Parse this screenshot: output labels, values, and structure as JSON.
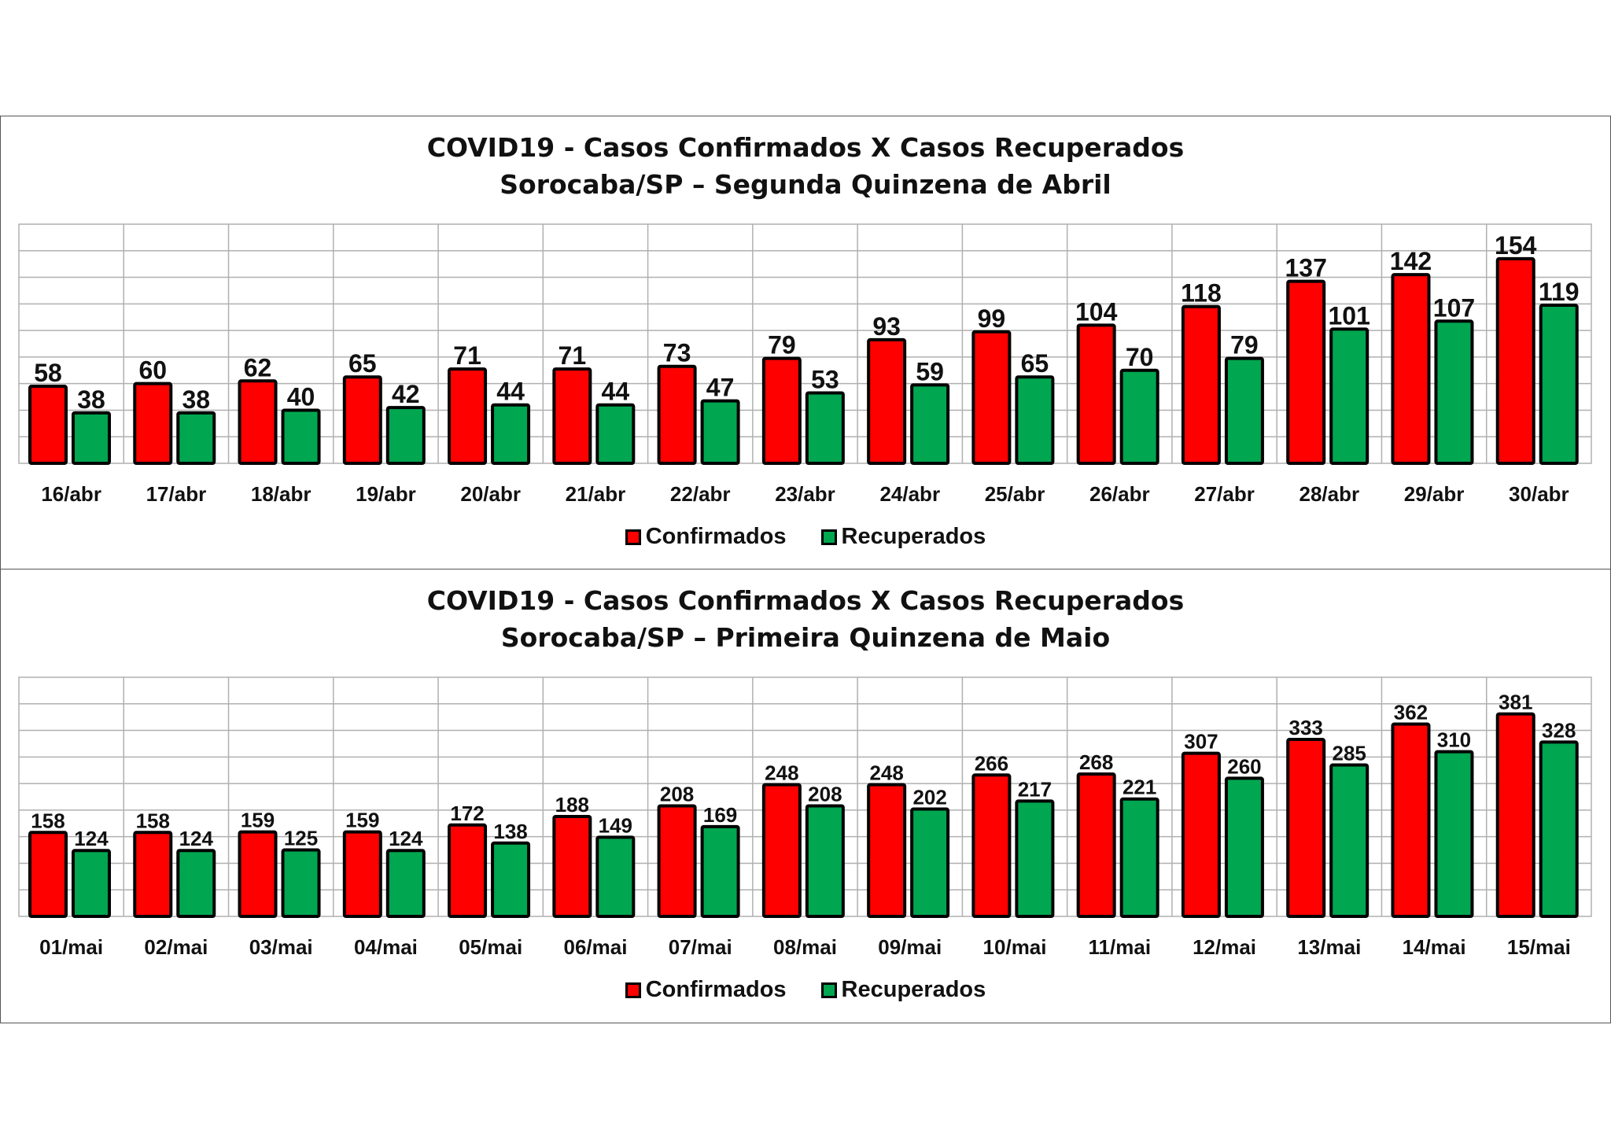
{
  "colors": {
    "confirmed": "#ff0000",
    "recovered": "#00a650",
    "bar_outline": "#000000",
    "grid": "#b0b0b0"
  },
  "legend": {
    "confirmed": "Confirmados",
    "recovered": "Recuperados"
  },
  "chart_data": [
    {
      "type": "bar",
      "title": "COVID19 -  Casos Confirmados X Casos Recuperados",
      "subtitle": "Sorocaba/SP – Segunda Quinzena de Abril",
      "categories": [
        "16/abr",
        "17/abr",
        "18/abr",
        "19/abr",
        "20/abr",
        "21/abr",
        "22/abr",
        "23/abr",
        "24/abr",
        "25/abr",
        "26/abr",
        "27/abr",
        "28/abr",
        "29/abr",
        "30/abr"
      ],
      "series": [
        {
          "name": "Confirmados",
          "values": [
            58,
            60,
            62,
            65,
            71,
            71,
            73,
            79,
            93,
            99,
            104,
            118,
            137,
            142,
            154
          ]
        },
        {
          "name": "Recuperados",
          "values": [
            38,
            38,
            40,
            42,
            44,
            44,
            47,
            53,
            59,
            65,
            70,
            79,
            101,
            107,
            119
          ]
        }
      ],
      "ylim": [
        0,
        180
      ],
      "grid": true,
      "legend_position": "bottom"
    },
    {
      "type": "bar",
      "title": "COVID19 -  Casos Confirmados X Casos Recuperados",
      "subtitle": "Sorocaba/SP – Primeira Quinzena de Maio",
      "categories": [
        "01/mai",
        "02/mai",
        "03/mai",
        "04/mai",
        "05/mai",
        "06/mai",
        "07/mai",
        "08/mai",
        "09/mai",
        "10/mai",
        "11/mai",
        "12/mai",
        "13/mai",
        "14/mai",
        "15/mai"
      ],
      "series": [
        {
          "name": "Confirmados",
          "values": [
            158,
            158,
            159,
            159,
            172,
            188,
            208,
            248,
            248,
            266,
            268,
            307,
            333,
            362,
            381
          ]
        },
        {
          "name": "Recuperados",
          "values": [
            124,
            124,
            125,
            124,
            138,
            149,
            169,
            208,
            202,
            217,
            221,
            260,
            285,
            310,
            328
          ]
        }
      ],
      "ylim": [
        0,
        450
      ],
      "grid": true,
      "legend_position": "bottom"
    }
  ]
}
